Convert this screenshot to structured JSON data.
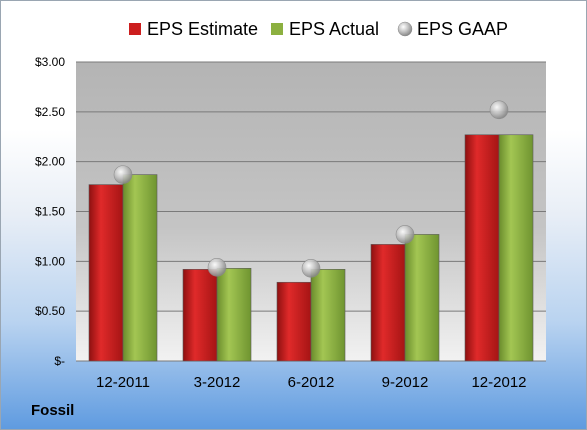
{
  "company": "Fossil",
  "chart_data": {
    "type": "bar",
    "categories": [
      "12-2011",
      "3-2012",
      "6-2012",
      "9-2012",
      "12-2012"
    ],
    "series": [
      {
        "name": "EPS Estimate",
        "kind": "bar",
        "color": "#cc1e1e",
        "values": [
          1.77,
          0.92,
          0.79,
          1.17,
          2.27
        ]
      },
      {
        "name": "EPS Actual",
        "kind": "bar",
        "color": "#8cb040",
        "values": [
          1.87,
          0.93,
          0.92,
          1.27,
          2.27
        ]
      },
      {
        "name": "EPS GAAP",
        "kind": "marker",
        "color": "#a8a8a8",
        "values": [
          1.87,
          0.94,
          0.93,
          1.27,
          2.52
        ]
      }
    ],
    "y_ticks": [
      {
        "value": 0,
        "label": "$-"
      },
      {
        "value": 0.5,
        "label": "$0.50"
      },
      {
        "value": 1.0,
        "label": "$1.00"
      },
      {
        "value": 1.5,
        "label": "$1.50"
      },
      {
        "value": 2.0,
        "label": "$2.00"
      },
      {
        "value": 2.5,
        "label": "$2.50"
      },
      {
        "value": 3.0,
        "label": "$3.00"
      }
    ],
    "ylim": [
      0,
      3.0
    ],
    "grid": true,
    "legend_position": "top"
  }
}
